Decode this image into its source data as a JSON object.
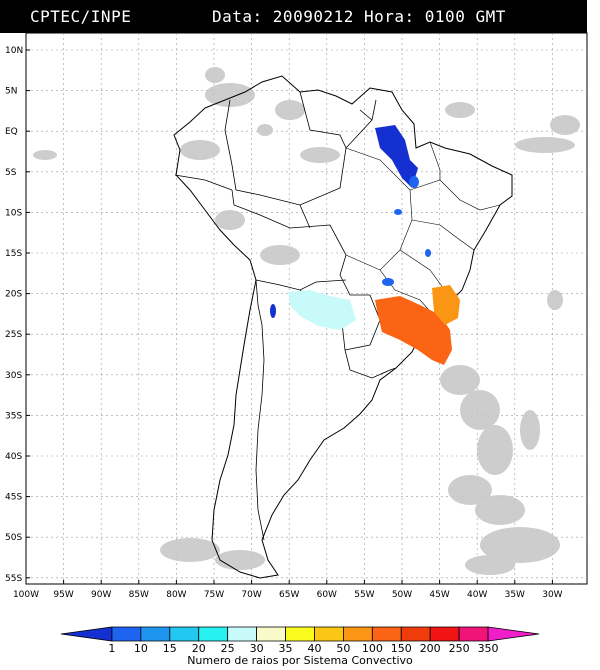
{
  "header": {
    "source": "CPTEC/INPE",
    "date_time": "Data: 20090212 Hora: 0100 GMT"
  },
  "map": {
    "lat_labels": [
      "10N",
      "5N",
      "EQ",
      "5S",
      "10S",
      "15S",
      "20S",
      "25S",
      "30S",
      "35S",
      "40S",
      "45S",
      "50S",
      "55S"
    ],
    "lon_labels": [
      "100W",
      "95W",
      "90W",
      "85W",
      "80W",
      "75W",
      "70W",
      "65W",
      "60W",
      "55W",
      "50W",
      "45W",
      "40W",
      "35W",
      "30W"
    ],
    "grid": true
  },
  "colorbar": {
    "labels": [
      "1",
      "10",
      "15",
      "20",
      "25",
      "30",
      "35",
      "40",
      "50",
      "100",
      "150",
      "200",
      "250",
      "350"
    ],
    "colors": [
      "#1430d0",
      "#1e64f0",
      "#1e96f0",
      "#22c8f0",
      "#28f0f0",
      "#c8fafa",
      "#fafac8",
      "#fafa1e",
      "#fac814",
      "#fa9614",
      "#fa6414",
      "#f03c0a",
      "#f01414",
      "#f01478",
      "#f01ec8"
    ],
    "title": "Numero de raios por Sistema Convectivo"
  }
}
